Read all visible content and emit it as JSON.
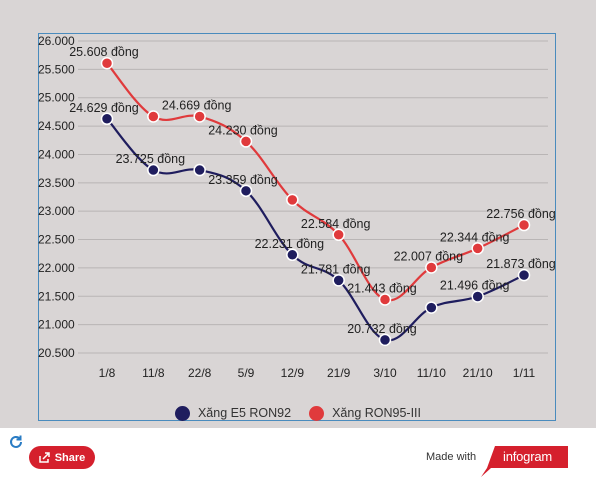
{
  "chart_data": {
    "type": "line",
    "categories": [
      "1/8",
      "11/8",
      "22/8",
      "5/9",
      "12/9",
      "21/9",
      "3/10",
      "11/10",
      "21/10",
      "1/11"
    ],
    "series": [
      {
        "name": "Xăng E5 RON92",
        "color": "#1f1d5e",
        "values": [
          24.629,
          23.725,
          23.725,
          23.359,
          22.231,
          21.781,
          20.732,
          21.3,
          21.496,
          21.873
        ],
        "labels": [
          "24.629 đồng",
          "23.725 đồng",
          "",
          "23.359 đồng",
          "22.231 đồng",
          "21.781 đồng",
          "20.732 đồng",
          "",
          "21.496 đồng",
          "21.873 đồng"
        ]
      },
      {
        "name": "Xăng RON95-III",
        "color": "#e03a3c",
        "values": [
          25.608,
          24.669,
          24.669,
          24.23,
          23.2,
          22.584,
          21.443,
          22.007,
          22.344,
          22.756
        ],
        "labels": [
          "25.608 đồng",
          "",
          "24.669 đồng",
          "24.230 đồng",
          "",
          "22.584 đồng",
          "21.443 đồng",
          "22.007 đồng",
          "22.344 đồng",
          "22.756 đồng"
        ]
      }
    ],
    "yticks": [
      "26.000",
      "25.500",
      "25.000",
      "24.500",
      "24.000",
      "23.500",
      "23.000",
      "22.500",
      "22.000",
      "21.500",
      "21.000",
      "20.500"
    ],
    "ylim": [
      20.5,
      26.0
    ],
    "grid": true,
    "legend_position": "bottom"
  },
  "footer": {
    "share_label": "Share",
    "made_with_label": "Made with",
    "brand_label": "infogram"
  },
  "colors": {
    "background": "#d9d5d5",
    "share_button": "#d5202d",
    "brand": "#d5202d"
  }
}
